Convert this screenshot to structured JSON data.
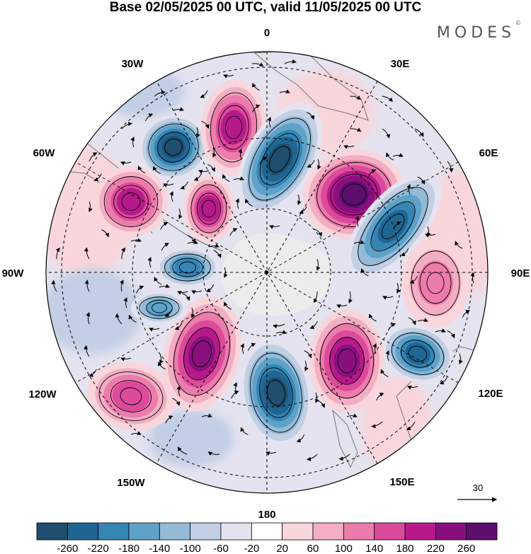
{
  "title": "Base 02/05/2025 00 UTC, valid 11/05/2025 00 UTC",
  "brand": "MODES",
  "brand_mark": "©",
  "longitude_labels": {
    "top": "0",
    "top_right": "30E",
    "right_upper": "60E",
    "right": "90E",
    "right_lower": "120E",
    "bottom_right": "150E",
    "bottom": "180",
    "bottom_left": "150W",
    "left_lower": "120W",
    "left": "90W",
    "left_upper": "60W",
    "top_left": "30W"
  },
  "reference_vector": {
    "label": "30"
  },
  "colorbar": {
    "labels": [
      "-260",
      "-220",
      "-180",
      "-140",
      "-100",
      "-60",
      "-20",
      "20",
      "60",
      "100",
      "140",
      "180",
      "220",
      "260"
    ],
    "colors": [
      "#1f4e6e",
      "#1f6693",
      "#3585b5",
      "#5ea2c8",
      "#93bbd8",
      "#c2cfe4",
      "#e4e3ef",
      "#ffffff",
      "#f8d6dc",
      "#f3aec3",
      "#ec7cab",
      "#dc4a9b",
      "#b61a8a",
      "#8a0f7e",
      "#5b0e6c"
    ]
  },
  "chart_data": {
    "type": "heatmap",
    "projection": "south polar stereographic",
    "field_levels": [
      -260,
      -220,
      -180,
      -140,
      -100,
      -60,
      -20,
      20,
      60,
      100,
      140,
      180,
      220,
      260
    ],
    "anomaly_centers": [
      {
        "name": "negative-30W",
        "sign": "negative",
        "strength": -260,
        "lon_label": "30W"
      },
      {
        "name": "positive-15W",
        "sign": "positive",
        "strength": 180,
        "lon_label": "30W"
      },
      {
        "name": "negative-15E",
        "sign": "negative",
        "strength": -260,
        "lon_label": "0"
      },
      {
        "name": "positive-50E",
        "sign": "positive",
        "strength": 260,
        "lon_label": "60E"
      },
      {
        "name": "negative-70E",
        "sign": "negative",
        "strength": -220,
        "lon_label": "60E"
      },
      {
        "name": "positive-90E",
        "sign": "positive",
        "strength": 100,
        "lon_label": "90E"
      },
      {
        "name": "negative-115E",
        "sign": "negative",
        "strength": -220,
        "lon_label": "120E"
      },
      {
        "name": "positive-150E",
        "sign": "positive",
        "strength": 220,
        "lon_label": "150E"
      },
      {
        "name": "negative-180",
        "sign": "negative",
        "strength": -260,
        "lon_label": "180"
      },
      {
        "name": "positive-135W",
        "sign": "positive",
        "strength": 220,
        "lon_label": "150W"
      },
      {
        "name": "positive-120W",
        "sign": "positive",
        "strength": 140,
        "lon_label": "120W"
      },
      {
        "name": "negative-100W",
        "sign": "negative",
        "strength": -140,
        "lon_label": "90W"
      },
      {
        "name": "negative-80W",
        "sign": "negative",
        "strength": -180,
        "lon_label": "90W"
      },
      {
        "name": "positive-60W",
        "sign": "positive",
        "strength": 180,
        "lon_label": "60W"
      },
      {
        "name": "positive-40W",
        "sign": "positive",
        "strength": 180,
        "lon_label": "30W"
      }
    ]
  }
}
